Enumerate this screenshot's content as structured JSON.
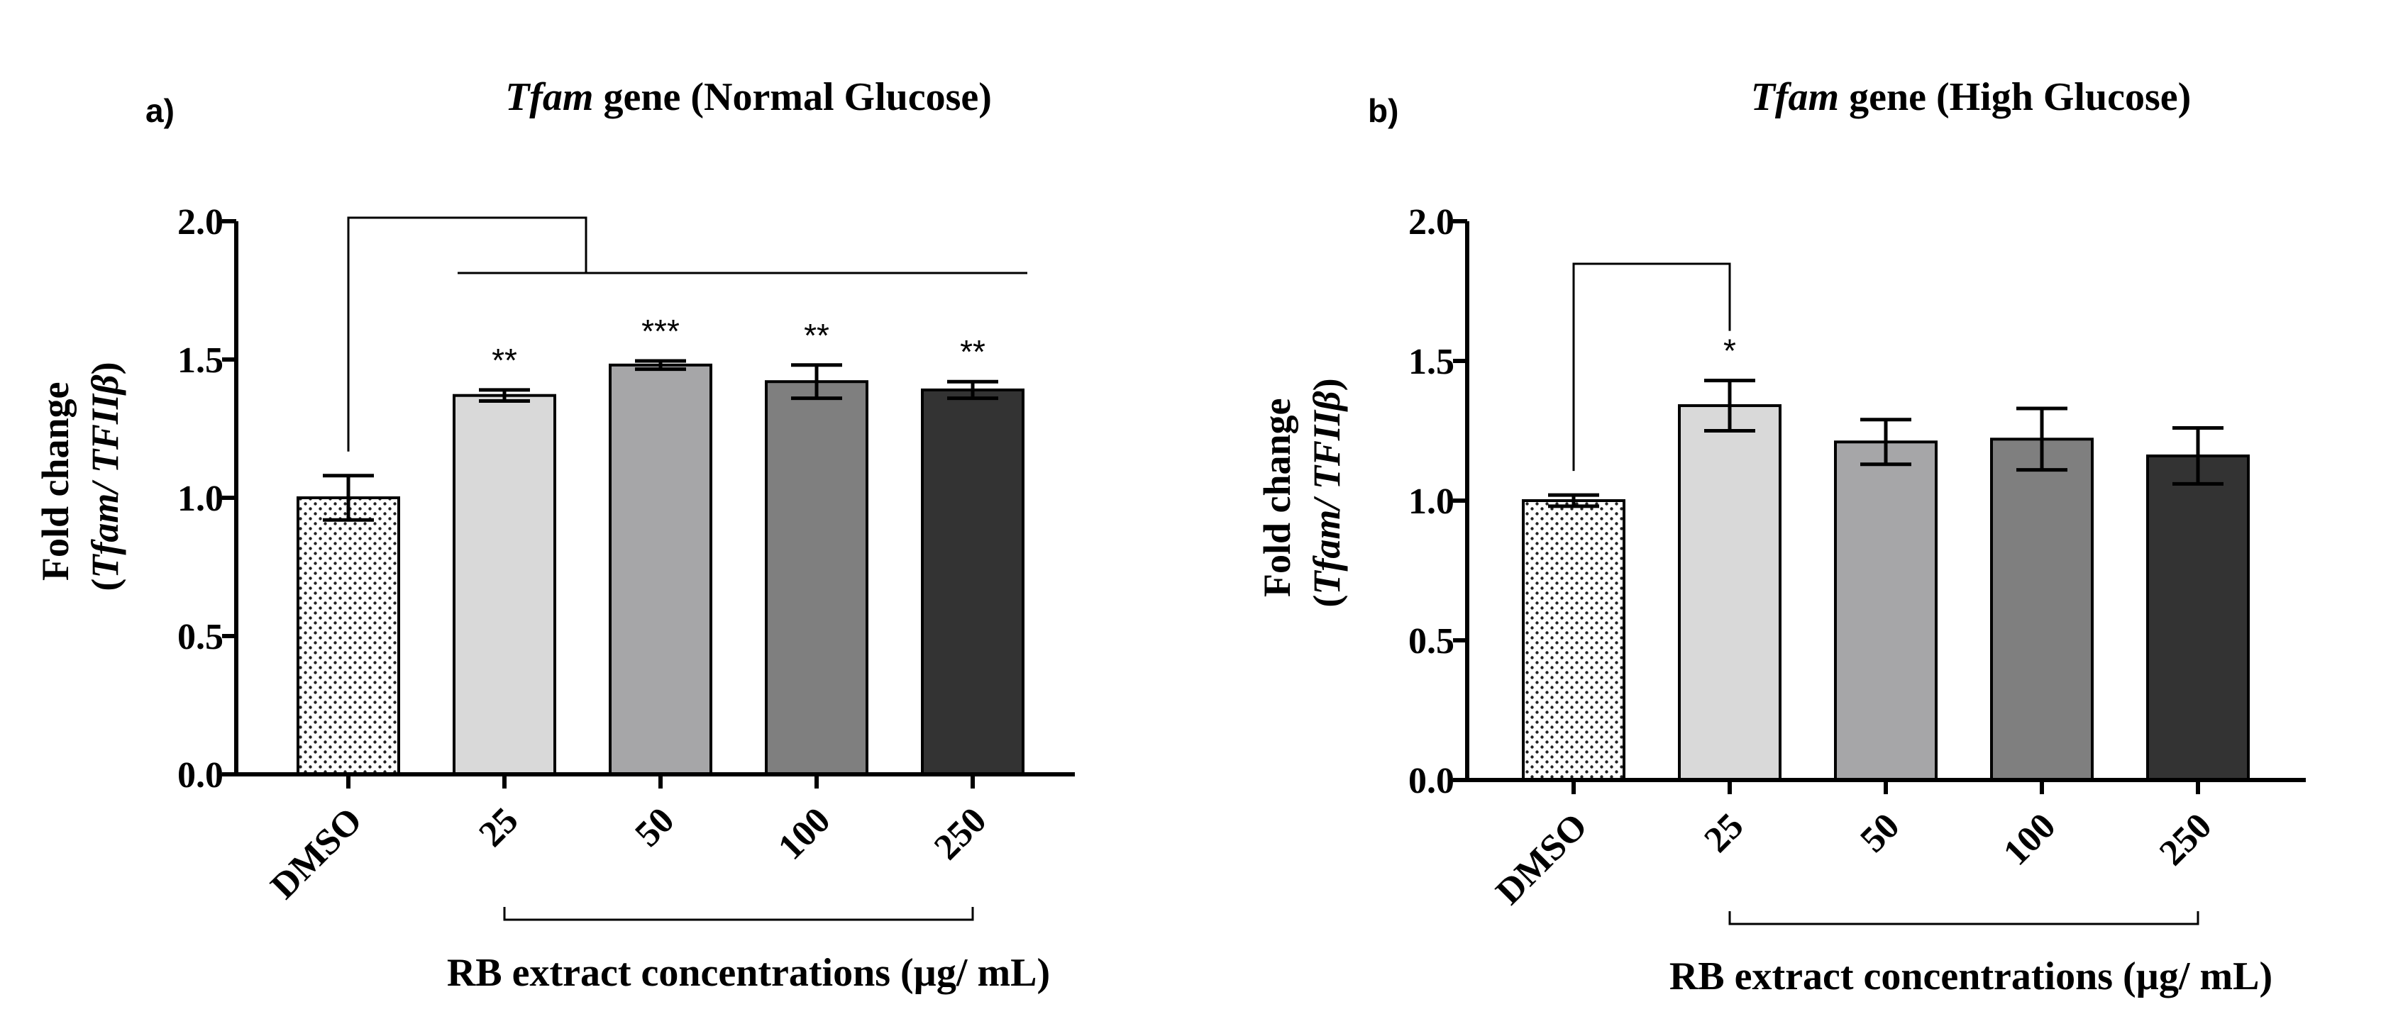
{
  "chart_data": [
    {
      "type": "bar",
      "panel_label": "a)",
      "title_italic": "Tfam",
      "title_rest": " gene (Normal Glucose)",
      "ylabel_line1": "Fold change",
      "ylabel_line2_open": "(",
      "ylabel_line2_italic": "Tfam/ TFIIβ",
      "ylabel_line2_close": ")",
      "xlabel": "RB extract concentrations (µg/ mL)",
      "categories": [
        "DMSO",
        "25",
        "50",
        "100",
        "250"
      ],
      "values": [
        1.0,
        1.37,
        1.48,
        1.42,
        1.39
      ],
      "errors": [
        0.08,
        0.02,
        0.015,
        0.06,
        0.03
      ],
      "significance": [
        "",
        "**",
        "***",
        "**",
        "**"
      ],
      "ylim": [
        0,
        2.0
      ],
      "yticks": [
        "0.0",
        "0.5",
        "1.0",
        "1.5",
        "2.0"
      ],
      "bar_fills": [
        "dots",
        "#d9d9d9",
        "#a6a6a8",
        "#7f7f7f",
        "#333333"
      ],
      "grid": false,
      "comparison_bracket": {
        "from": "DMSO",
        "to": [
          "25",
          "50",
          "100",
          "250"
        ]
      }
    },
    {
      "type": "bar",
      "panel_label": "b)",
      "title_italic": "Tfam",
      "title_rest": " gene (High Glucose)",
      "ylabel_line1": "Fold change",
      "ylabel_line2_open": "(",
      "ylabel_line2_italic": "Tfam/ TFIIβ",
      "ylabel_line2_close": ")",
      "xlabel": "RB extract concentrations (µg/ mL)",
      "categories": [
        "DMSO",
        "25",
        "50",
        "100",
        "250"
      ],
      "values": [
        1.0,
        1.34,
        1.21,
        1.22,
        1.16
      ],
      "errors": [
        0.02,
        0.09,
        0.08,
        0.11,
        0.1
      ],
      "significance": [
        "",
        "*",
        "",
        "",
        ""
      ],
      "ylim": [
        0,
        2.0
      ],
      "yticks": [
        "0.0",
        "0.5",
        "1.0",
        "1.5",
        "2.0"
      ],
      "bar_fills": [
        "dots",
        "#d9d9d9",
        "#a6a6a8",
        "#7f7f7f",
        "#333333"
      ],
      "grid": false,
      "comparison_bracket": {
        "from": "DMSO",
        "to": [
          "25"
        ]
      }
    }
  ]
}
